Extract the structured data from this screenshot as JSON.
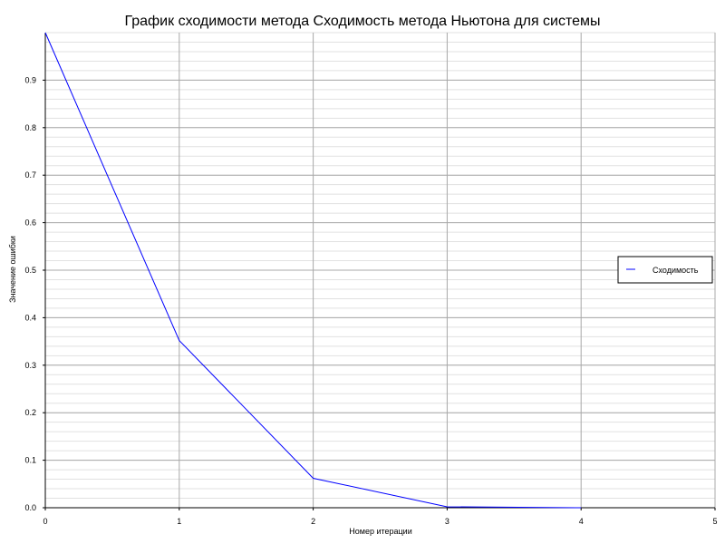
{
  "chart_data": {
    "type": "line",
    "title": "График сходимости метода Сходимость метода Ньютона для системы",
    "xlabel": "Номер итерации",
    "ylabel": "Значение ошибки",
    "xlim": [
      0,
      5
    ],
    "ylim": [
      0,
      1.0
    ],
    "x_ticks": [
      "0",
      "1",
      "2",
      "3",
      "4",
      "5"
    ],
    "y_ticks": [
      "0.0",
      "0.1",
      "0.2",
      "0.3",
      "0.4",
      "0.5",
      "0.6",
      "0.7",
      "0.8",
      "0.9"
    ],
    "grid": true,
    "minor_grid": true,
    "legend_position": "right",
    "series": [
      {
        "name": "Сходимость",
        "color": "#0000ff",
        "x": [
          0,
          1,
          2,
          3,
          4
        ],
        "y": [
          1.0,
          0.352,
          0.062,
          0.002,
          0.0
        ]
      }
    ]
  }
}
